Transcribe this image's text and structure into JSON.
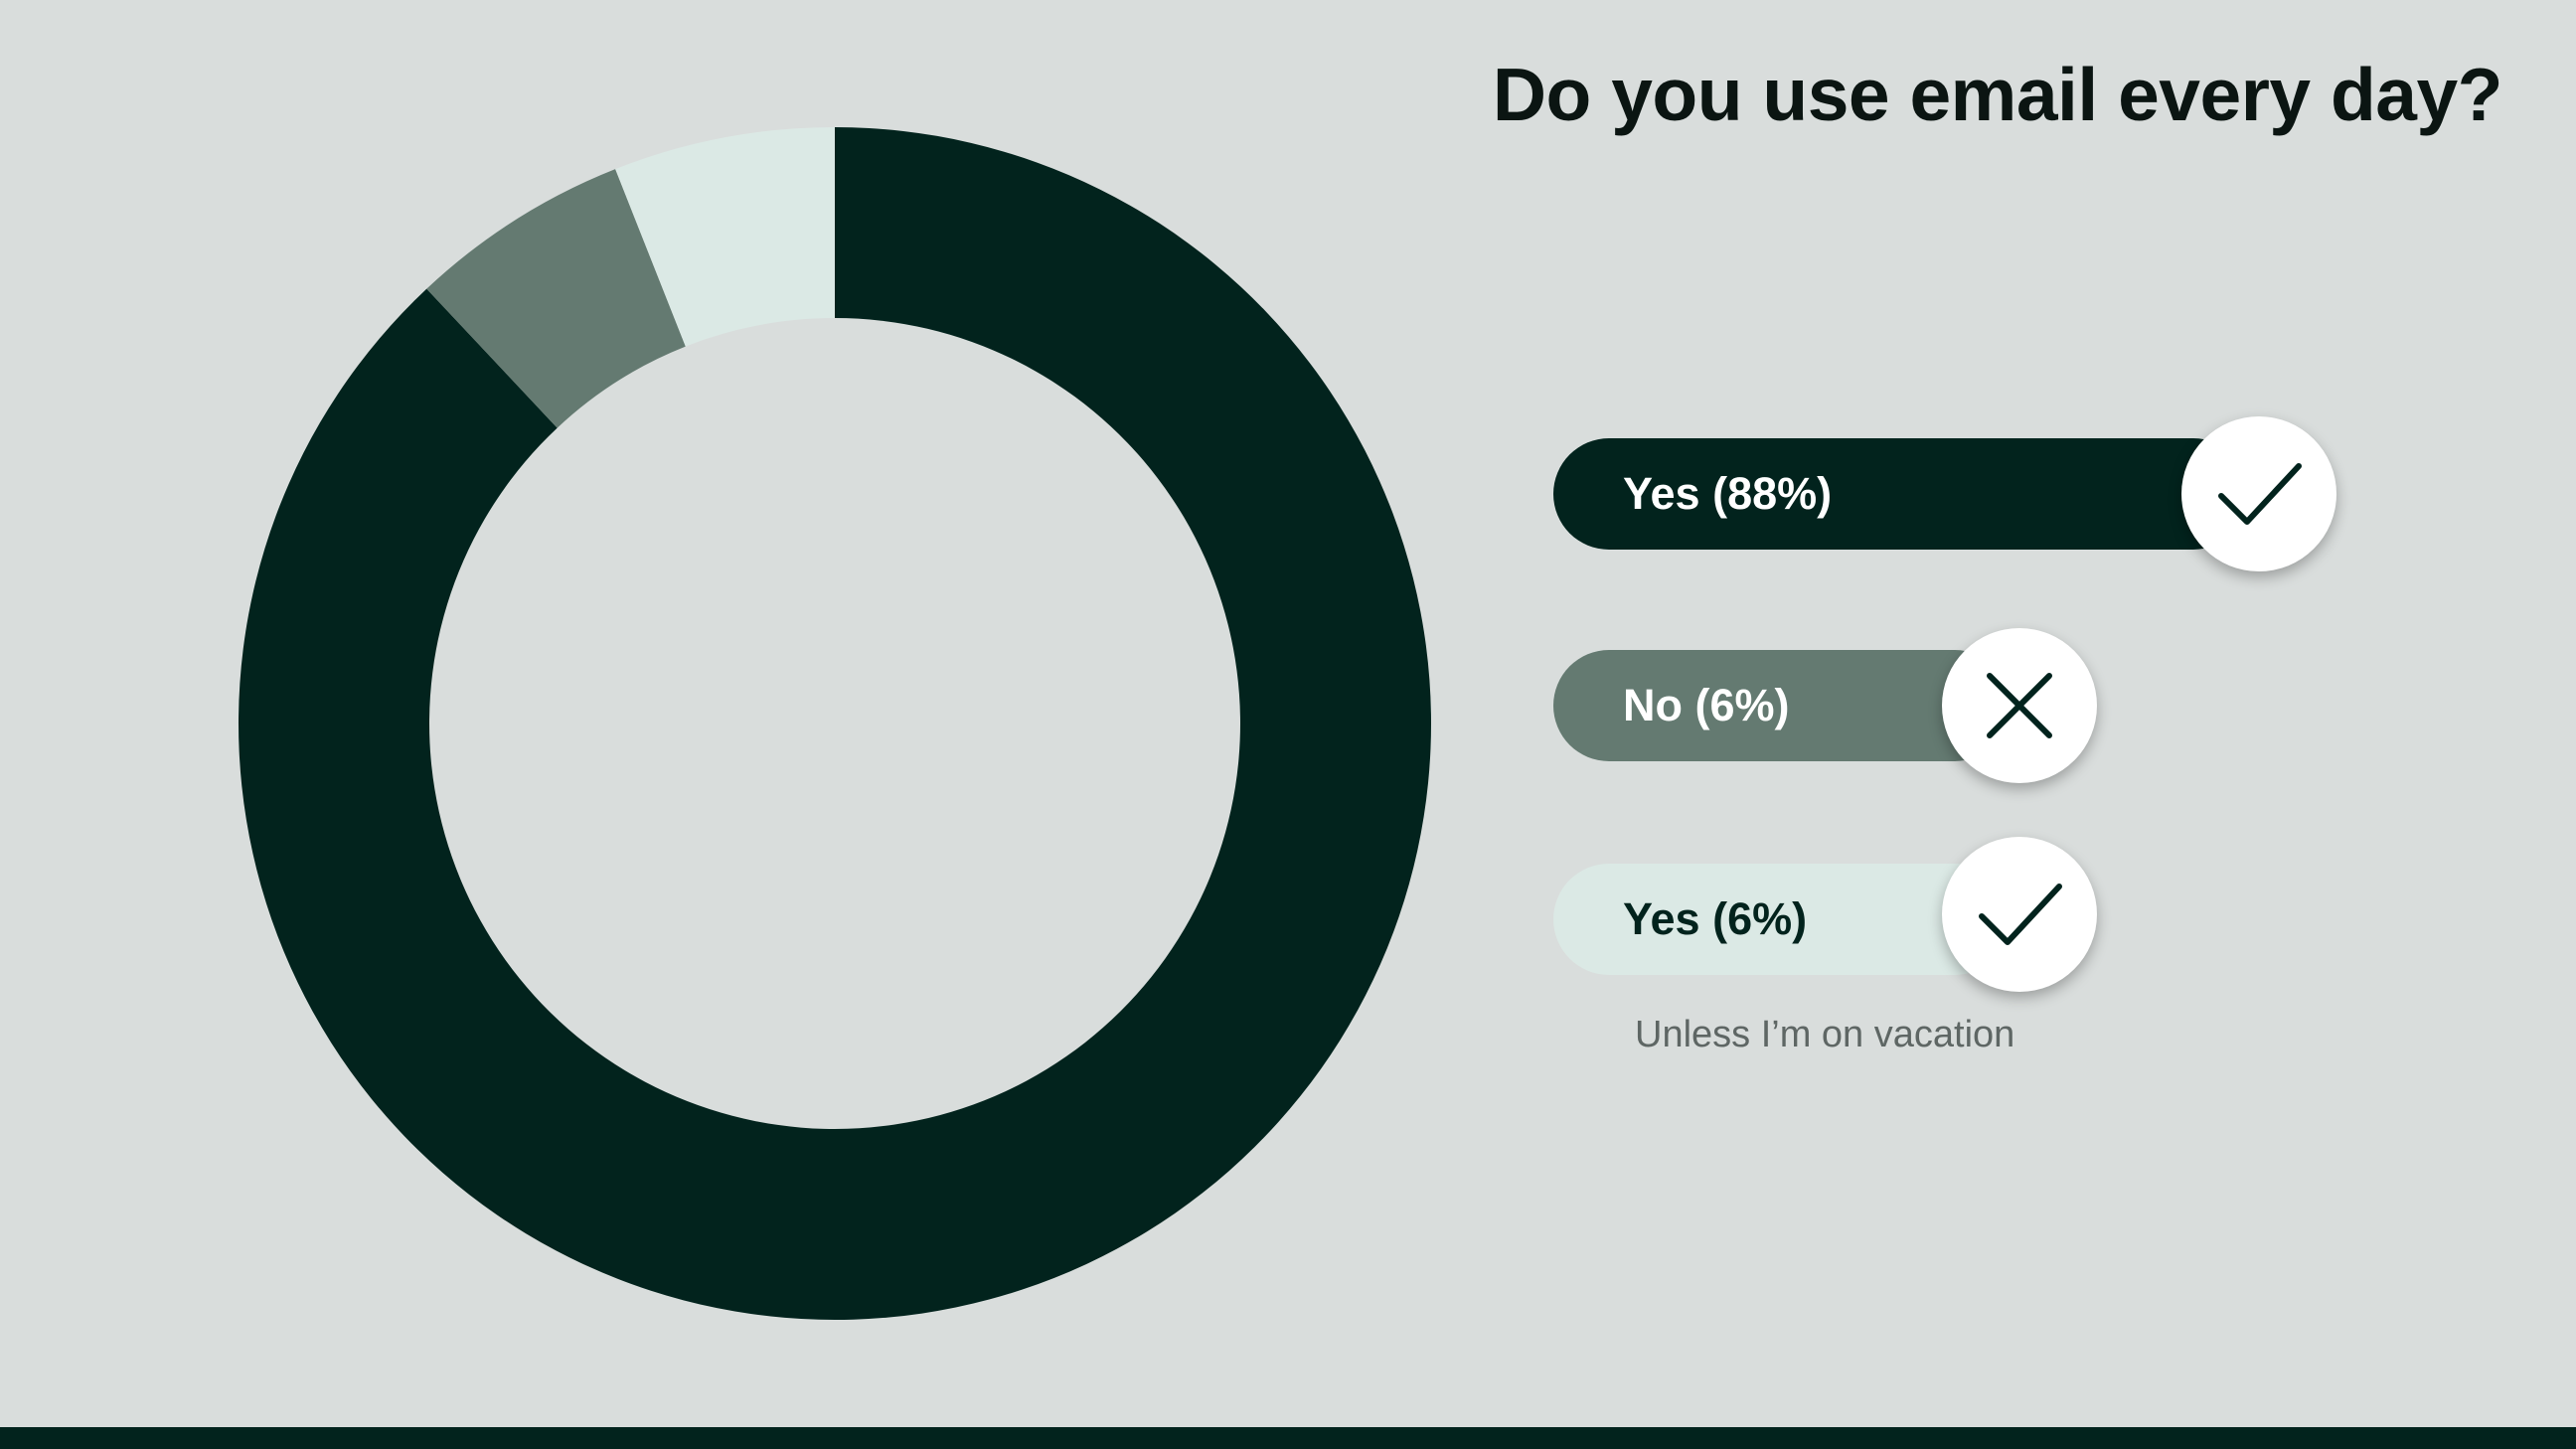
{
  "chart_data": {
    "type": "pie",
    "title": "Do you use email every day?",
    "categories": [
      "Yes (88%)",
      "No (6%)",
      "Yes (6%)"
    ],
    "values": [
      88,
      6,
      6
    ],
    "colors": [
      "#02231d",
      "#647a71",
      "#dbe9e5"
    ],
    "annotations": [
      "Unless I’m on vacation"
    ],
    "legend_icons": [
      "check-icon",
      "x-icon",
      "check-icon"
    ]
  },
  "background_color": "#d9dddc",
  "footer_color": "#02231d"
}
